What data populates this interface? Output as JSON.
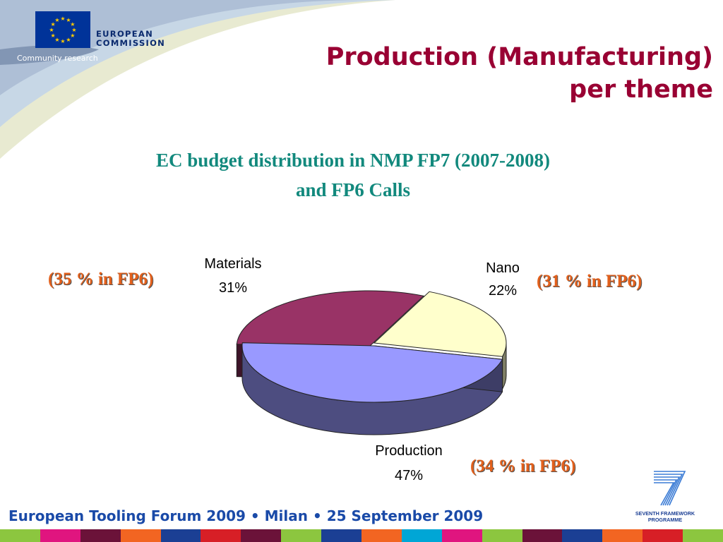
{
  "header": {
    "org_name_line1": "EUROPEAN",
    "org_name_line2": "COMMISSION",
    "org_sub": "Community research",
    "title_line1": "Production (Manufacturing)",
    "title_line2": "per theme"
  },
  "subtitle": {
    "line1": "EC budget distribution in NMP FP7 (2007-2008)",
    "line2": "and FP6 Calls"
  },
  "fp6_notes": {
    "materials": "(35 % in FP6)",
    "nano": "(31 % in FP6)",
    "production": "(34 % in FP6)"
  },
  "chart_data": {
    "type": "pie",
    "slices": [
      {
        "label": "Materials",
        "value": 31,
        "value_label": "31%",
        "color": "#993366"
      },
      {
        "label": "Nano",
        "value": 22,
        "value_label": "22%",
        "color": "#ffffcc"
      },
      {
        "label": "Production",
        "value": 47,
        "value_label": "47%",
        "color": "#9999ff"
      }
    ]
  },
  "footer": {
    "text": "European Tooling Forum 2009 • Milan • 25 September 2009",
    "logo_line1": "SEVENTH FRAMEWORK",
    "logo_line2": "PROGRAMME"
  },
  "strip_colors": [
    "#8cc63f",
    "#e0157f",
    "#6b1239",
    "#f26522",
    "#1b3f94",
    "#d71f26",
    "#6b1239",
    "#8cc63f",
    "#1b3f94",
    "#f26522",
    "#00a6d6",
    "#e0157f",
    "#8cc63f",
    "#6b1239",
    "#1b3f94",
    "#f26522",
    "#d71f26",
    "#8cc63f"
  ]
}
